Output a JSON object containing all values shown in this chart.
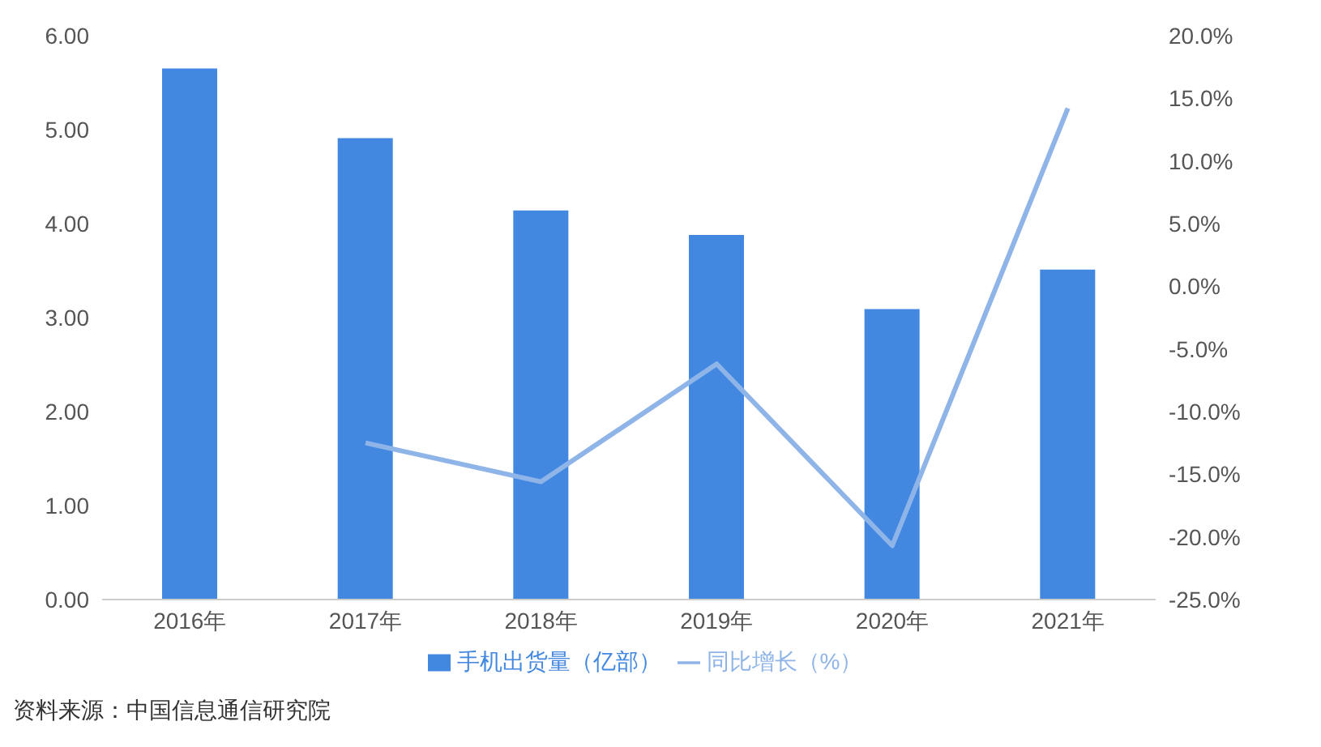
{
  "chart_data": {
    "type": "bar",
    "categories": [
      "2016年",
      "2017年",
      "2018年",
      "2019年",
      "2020年",
      "2021年"
    ],
    "series": [
      {
        "name": "手机出货量（亿部）",
        "color": "#4287e0",
        "values": [
          5.65,
          4.91,
          4.14,
          3.88,
          3.09,
          3.51
        ]
      },
      {
        "name": "同比增长（%）",
        "type": "line",
        "axis": "y2",
        "color": "#8fb4e8",
        "values": [
          null,
          -12.5,
          -15.6,
          -6.2,
          -20.7,
          14.2
        ]
      }
    ],
    "ylim": [
      0,
      6
    ],
    "yticks": [
      {
        "value": 0,
        "label": "0.00"
      },
      {
        "value": 1,
        "label": "1.00"
      },
      {
        "value": 2,
        "label": "2.00"
      },
      {
        "value": 3,
        "label": "3.00"
      },
      {
        "value": 4,
        "label": "4.00"
      },
      {
        "value": 5,
        "label": "5.00"
      },
      {
        "value": 6,
        "label": "6.00"
      }
    ],
    "y2lim": [
      -25,
      20
    ],
    "y2ticks": [
      {
        "value": -25,
        "label": "-25.0%"
      },
      {
        "value": -20,
        "label": "-20.0%"
      },
      {
        "value": -15,
        "label": "-15.0%"
      },
      {
        "value": -10,
        "label": "-10.0%"
      },
      {
        "value": -5,
        "label": "-5.0%"
      },
      {
        "value": 0,
        "label": "0.0%"
      },
      {
        "value": 5,
        "label": "5.0%"
      },
      {
        "value": 10,
        "label": "10.0%"
      },
      {
        "value": 15,
        "label": "15.0%"
      },
      {
        "value": 20,
        "label": "20.0%"
      }
    ],
    "legend": "bottom",
    "marker": "none",
    "annotations": [
      "资料来源：中国信息通信研究院"
    ]
  }
}
